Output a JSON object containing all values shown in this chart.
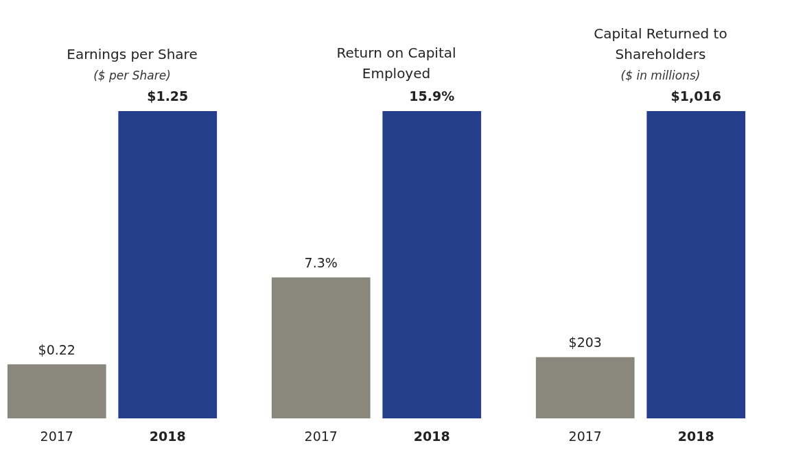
{
  "chart_data": [
    {
      "type": "bar",
      "title": "Earnings per Share",
      "subtitle": "($ per Share)",
      "categories": [
        "2017",
        "2018"
      ],
      "values": [
        0.22,
        1.25
      ],
      "colors": [
        "#8a887c",
        "#253e8c"
      ],
      "value_labels": [
        "$0.22",
        "$1.25"
      ]
    },
    {
      "type": "bar",
      "title": "Return on Capital Employed",
      "categories": [
        "2017",
        "2018"
      ],
      "values": [
        7.3,
        15.9
      ],
      "colors": [
        "#8a887c",
        "#253e8c"
      ],
      "value_labels": [
        "7.3%",
        "15.9%"
      ]
    },
    {
      "type": "bar",
      "title": "Capital Returned to Shareholders",
      "subtitle": "($ in millions)",
      "categories": [
        "2017",
        "2018"
      ],
      "values": [
        203,
        1016
      ],
      "colors": [
        "#8a887c",
        "#253e8c"
      ],
      "value_labels": [
        "$203",
        "$1,016"
      ]
    }
  ]
}
